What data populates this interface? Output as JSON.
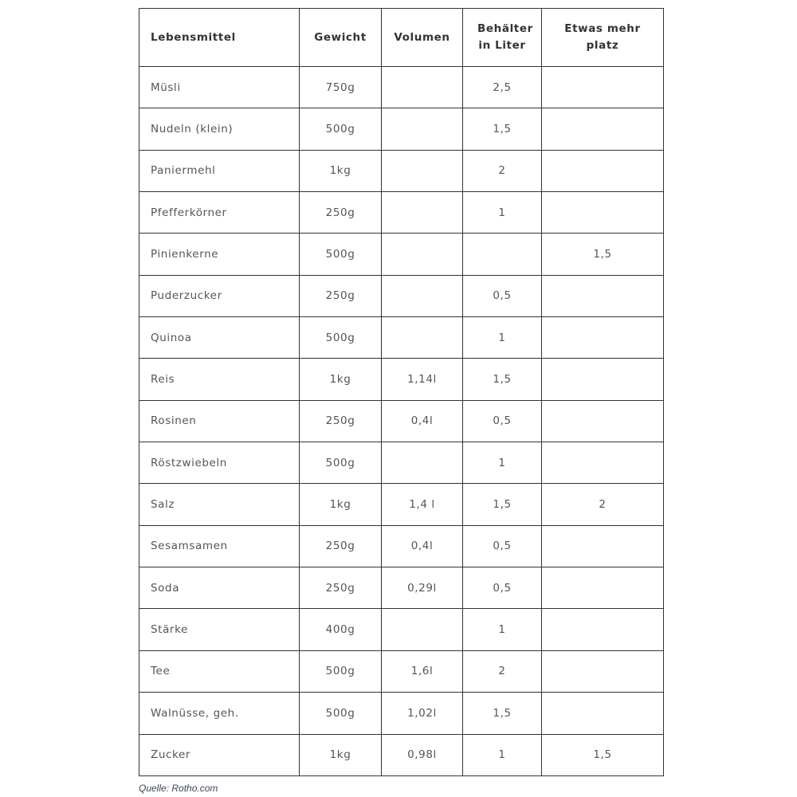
{
  "table": {
    "headers": [
      "Lebensmittel",
      "Gewicht",
      "Volumen",
      "Behälter in Liter",
      "Etwas mehr platz"
    ],
    "rows": [
      [
        "Müsli",
        "750g",
        "",
        "2,5",
        ""
      ],
      [
        "Nudeln (klein)",
        "500g",
        "",
        "1,5",
        ""
      ],
      [
        "Paniermehl",
        "1kg",
        "",
        "2",
        ""
      ],
      [
        "Pfefferkörner",
        "250g",
        "",
        "1",
        ""
      ],
      [
        "Pinienkerne",
        "500g",
        "",
        "",
        "1,5"
      ],
      [
        "Puderzucker",
        "250g",
        "",
        "0,5",
        ""
      ],
      [
        "Quinoa",
        "500g",
        "",
        "1",
        ""
      ],
      [
        "Reis",
        "1kg",
        "1,14l",
        "1,5",
        ""
      ],
      [
        "Rosinen",
        "250g",
        "0,4l",
        "0,5",
        ""
      ],
      [
        "Röstzwiebeln",
        "500g",
        "",
        "1",
        ""
      ],
      [
        "Salz",
        "1kg",
        "1,4 l",
        "1,5",
        "2"
      ],
      [
        "Sesamsamen",
        "250g",
        "0,4l",
        "0,5",
        ""
      ],
      [
        "Soda",
        "250g",
        "0,29l",
        "0,5",
        ""
      ],
      [
        "Stärke",
        "400g",
        "",
        "1",
        ""
      ],
      [
        "Tee",
        "500g",
        "1,6l",
        "2",
        ""
      ],
      [
        "Walnüsse, geh.",
        "500g",
        "1,02l",
        "1,5",
        ""
      ],
      [
        "Zucker",
        "1kg",
        "0,98l",
        "1",
        "1,5"
      ]
    ]
  },
  "caption": "Quelle: Rotho.com"
}
